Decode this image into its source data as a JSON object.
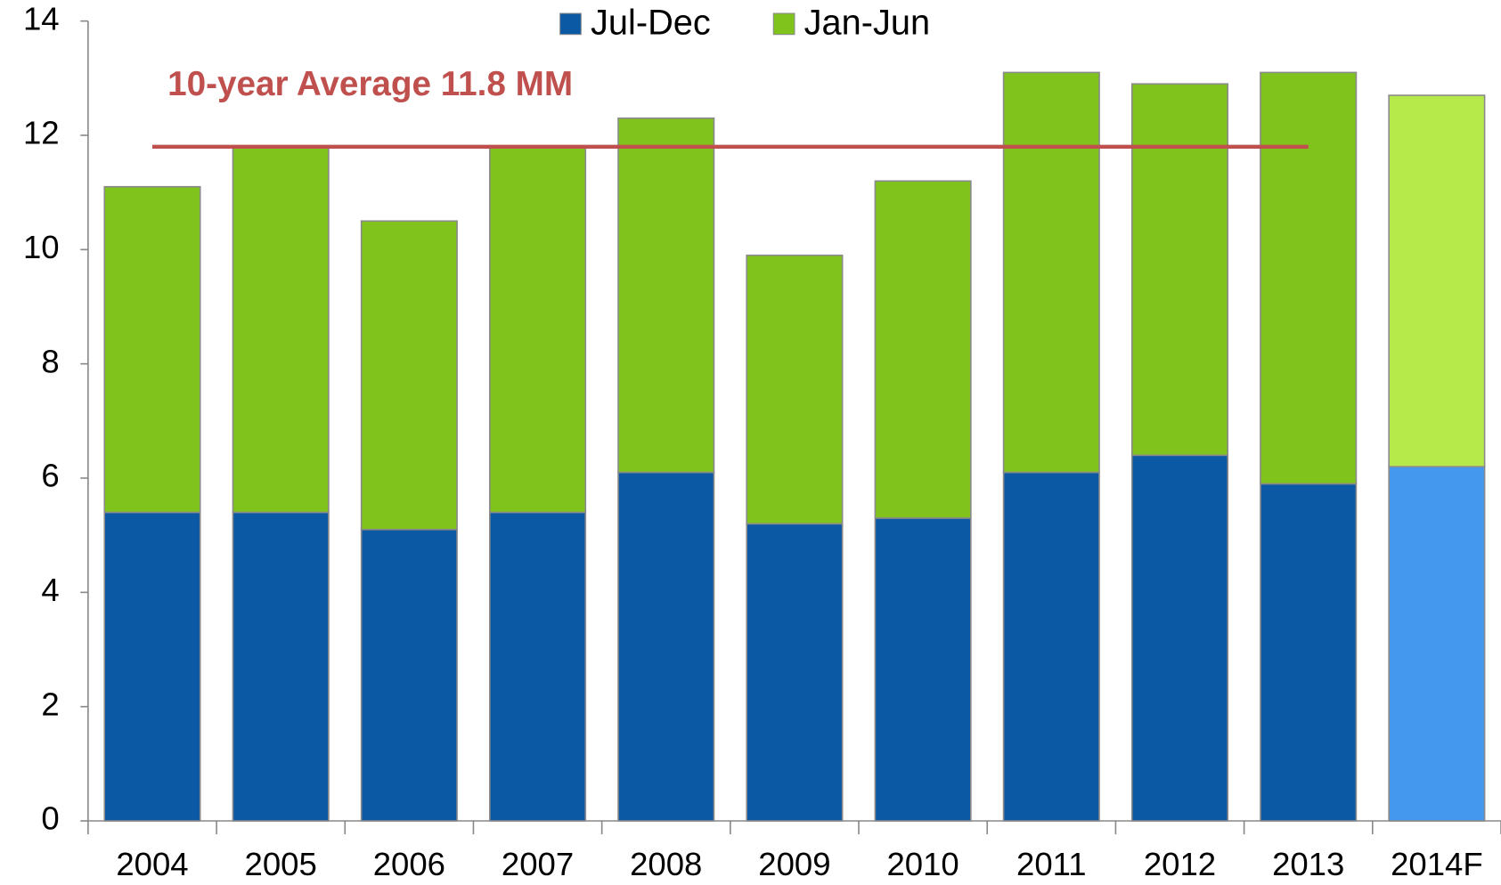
{
  "chart_data": {
    "type": "stacked_bar",
    "categories": [
      "2004",
      "2005",
      "2006",
      "2007",
      "2008",
      "2009",
      "2010",
      "2011",
      "2012",
      "2013",
      "2014F"
    ],
    "series": [
      {
        "name": "Jul-Dec",
        "color": "#0b58a5",
        "colors": [
          "#0b58a5",
          "#0b58a5",
          "#0b58a5",
          "#0b58a5",
          "#0b58a5",
          "#0b58a5",
          "#0b58a5",
          "#0b58a5",
          "#0b58a5",
          "#0b58a5",
          "#4499ee"
        ],
        "values": [
          5.4,
          5.4,
          5.1,
          5.4,
          6.1,
          5.2,
          5.3,
          6.1,
          6.4,
          5.9,
          6.2
        ]
      },
      {
        "name": "Jan-Jun",
        "color": "#80c31c",
        "colors": [
          "#80c31c",
          "#80c31c",
          "#80c31c",
          "#80c31c",
          "#80c31c",
          "#80c31c",
          "#80c31c",
          "#80c31c",
          "#80c31c",
          "#80c31c",
          "#b5ea4a"
        ],
        "values": [
          5.7,
          6.4,
          5.4,
          6.4,
          6.2,
          4.7,
          5.9,
          7.0,
          6.5,
          7.2,
          6.5
        ]
      }
    ],
    "ylim": [
      0,
      14
    ],
    "yticks": [
      0,
      2,
      4,
      6,
      8,
      10,
      12,
      14
    ],
    "legend": "top",
    "reference_line": {
      "value": 11.8,
      "label": "10-year Average 11.8 MM",
      "color": "#c0504d",
      "span_categories": [
        "2004",
        "2013"
      ]
    }
  }
}
